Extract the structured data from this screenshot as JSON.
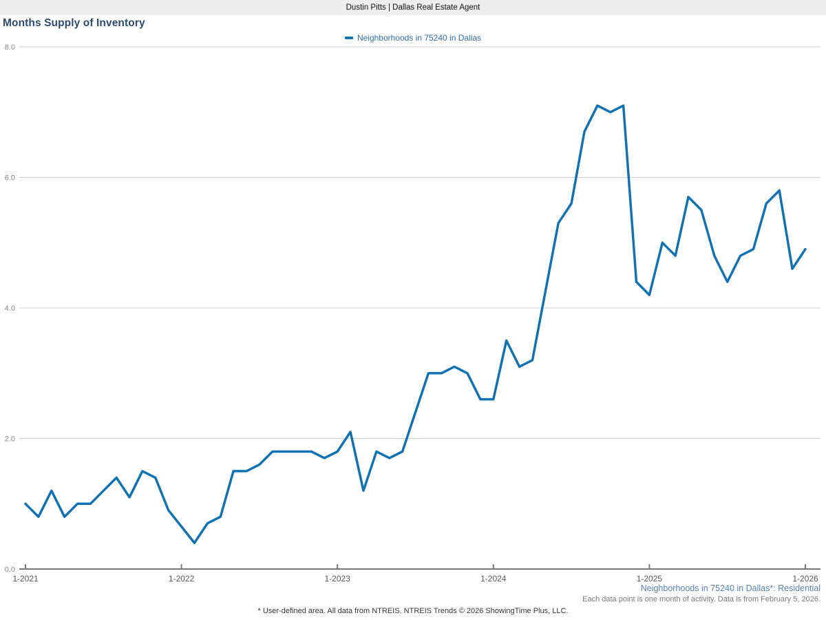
{
  "header": {
    "title": "Dustin Pitts | Dallas Real Estate Agent"
  },
  "page": {
    "title": "Months Supply of Inventory"
  },
  "legend": {
    "label": "Neighborhoods in 75240 in Dallas"
  },
  "annotations": {
    "series_note": "Neighborhoods in 75240 in Dallas*: Residential",
    "data_note": "Each data point is one month of activity. Data is from February 5, 2026.",
    "footer": "* User-defined area. All data from NTREIS. NTREIS Trends © 2026 ShowingTime Plus, LLC."
  },
  "colors": {
    "line": "#1272b1",
    "title_text": "#2c4a6e",
    "legend_text": "#2e6ca4",
    "series_note_text": "#5580b1",
    "grid": "#cccccc",
    "axis": "#777777",
    "x_tick_label": "#555555",
    "y_tick_label": "#888888",
    "header_bg": "#ededed"
  },
  "chart_data": {
    "type": "line",
    "title": "Months Supply of Inventory",
    "series_name": "Neighborhoods in 75240 in Dallas",
    "x_unit": "month",
    "x_start": "1-2021",
    "x_end": "1-2026",
    "x_tick_labels": [
      "1-2021",
      "1-2022",
      "1-2023",
      "1-2024",
      "1-2025",
      "1-2026"
    ],
    "x_tick_indices": [
      0,
      12,
      24,
      36,
      48,
      60
    ],
    "y_ticks": [
      0,
      2,
      4,
      6,
      8
    ],
    "y_tick_labels": [
      "0.0",
      "2.0",
      "4.0",
      "6.0",
      "8.0"
    ],
    "ylim": [
      0,
      8
    ],
    "grid": "horizontal",
    "legend_position": "top-center",
    "values": [
      1.0,
      0.8,
      1.2,
      0.8,
      1.0,
      1.0,
      1.2,
      1.4,
      1.1,
      1.5,
      1.4,
      0.9,
      0.65,
      0.4,
      0.7,
      0.8,
      1.5,
      1.5,
      1.6,
      1.8,
      1.8,
      1.8,
      1.8,
      1.7,
      1.8,
      2.1,
      1.2,
      1.8,
      1.7,
      1.8,
      2.4,
      3.0,
      3.0,
      3.1,
      3.0,
      2.6,
      2.6,
      3.5,
      3.1,
      3.2,
      4.25,
      5.3,
      5.6,
      6.7,
      7.1,
      7.0,
      7.1,
      4.4,
      4.2,
      5.0,
      4.8,
      5.7,
      5.5,
      4.8,
      4.4,
      4.8,
      4.9,
      5.6,
      5.8,
      4.6,
      4.9
    ]
  }
}
